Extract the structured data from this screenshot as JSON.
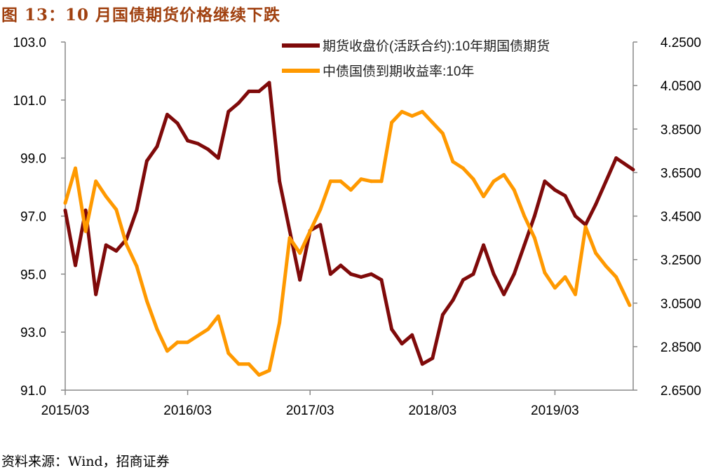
{
  "title": "图 13：10 月国债期货价格继续下跌",
  "source": "资料来源：Wind，招商证券",
  "chart_data": {
    "type": "line",
    "title": "图 13：10 月国债期货价格继续下跌",
    "x_ticks": [
      "2015/03",
      "2016/03",
      "2017/03",
      "2018/03",
      "2019/03"
    ],
    "left_axis": {
      "ylim": [
        91.0,
        103.0
      ],
      "ticks": [
        "103.0",
        "101.0",
        "99.0",
        "97.0",
        "95.0",
        "93.0",
        "91.0"
      ]
    },
    "right_axis": {
      "ylim": [
        2.65,
        4.25
      ],
      "ticks": [
        "4.2500",
        "4.0500",
        "3.8500",
        "3.6500",
        "3.4500",
        "3.2500",
        "3.0500",
        "2.8500",
        "2.6500"
      ]
    },
    "grid": false,
    "legend_position": "top-right",
    "x": [
      "2015/03",
      "2015/04",
      "2015/05",
      "2015/06",
      "2015/07",
      "2015/08",
      "2015/09",
      "2015/10",
      "2015/11",
      "2015/12",
      "2016/01",
      "2016/02",
      "2016/03",
      "2016/04",
      "2016/05",
      "2016/06",
      "2016/07",
      "2016/08",
      "2016/09",
      "2016/10",
      "2016/11",
      "2016/12",
      "2017/01",
      "2017/02",
      "2017/03",
      "2017/04",
      "2017/05",
      "2017/06",
      "2017/07",
      "2017/08",
      "2017/09",
      "2017/10",
      "2017/11",
      "2017/12",
      "2018/01",
      "2018/02",
      "2018/03",
      "2018/04",
      "2018/05",
      "2018/06",
      "2018/07",
      "2018/08",
      "2018/09",
      "2018/10",
      "2018/11",
      "2018/12",
      "2019/01",
      "2019/02",
      "2019/03",
      "2019/04",
      "2019/05",
      "2019/06",
      "2019/07",
      "2019/08",
      "2019/09",
      "2019/10"
    ],
    "series": [
      {
        "name": "期货收盘价(活跃合约):10年期国债期货",
        "axis": "left",
        "color": "#7F0A0A",
        "values": [
          97.2,
          95.3,
          97.2,
          94.3,
          96.0,
          95.8,
          96.2,
          97.2,
          98.9,
          99.4,
          100.5,
          100.2,
          99.6,
          99.5,
          99.3,
          99.0,
          100.6,
          100.9,
          101.3,
          101.3,
          101.6,
          98.2,
          96.5,
          94.8,
          96.5,
          96.7,
          95.0,
          95.3,
          95.0,
          94.9,
          95.0,
          94.8,
          93.1,
          92.6,
          92.9,
          91.9,
          92.1,
          93.6,
          94.1,
          94.8,
          95.0,
          96.0,
          95.0,
          94.3,
          95.0,
          96.0,
          97.0,
          98.2,
          97.9,
          97.7,
          97.0,
          96.7,
          97.4,
          98.2,
          99.0,
          98.6
        ]
      },
      {
        "name": "中债国债到期收益率:10年",
        "axis": "right",
        "color": "#FF9900",
        "values": [
          3.51,
          3.67,
          3.38,
          3.61,
          3.54,
          3.48,
          3.32,
          3.22,
          3.06,
          2.93,
          2.83,
          2.87,
          2.87,
          2.9,
          2.93,
          2.99,
          2.82,
          2.77,
          2.77,
          2.72,
          2.74,
          2.96,
          3.35,
          3.28,
          3.38,
          3.48,
          3.61,
          3.61,
          3.57,
          3.62,
          3.61,
          3.61,
          3.88,
          3.93,
          3.91,
          3.93,
          3.88,
          3.83,
          3.7,
          3.67,
          3.62,
          3.54,
          3.61,
          3.64,
          3.57,
          3.45,
          3.35,
          3.19,
          3.12,
          3.17,
          3.09,
          3.4,
          3.28,
          3.22,
          3.17,
          3.04
        ]
      }
    ]
  }
}
